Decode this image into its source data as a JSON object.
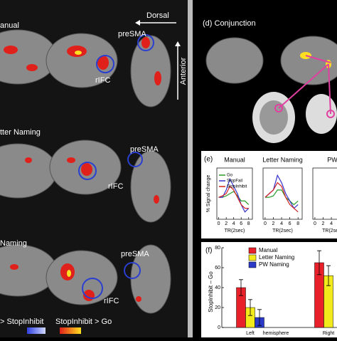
{
  "left": {
    "panels": [
      {
        "label": "anual",
        "pre_sma": "preSMA",
        "rifc": "rIFC"
      },
      {
        "label": "tter Naming",
        "pre_sma": "preSMA",
        "rifc": "rIFC"
      },
      {
        "label": "Naming",
        "pre_sma": "preSMA",
        "rifc": "rIFC"
      }
    ],
    "orientation": {
      "dorsal": "Dorsal",
      "anterior": "Anterior"
    },
    "legend": {
      "negative": "> StopInhibit",
      "positive": "StopInhibit > Go"
    }
  },
  "conjunction": {
    "title": "(d) Conjunction"
  },
  "timecourse": {
    "label": "(e)",
    "ylabel": "% Signal change",
    "xlabel": "TR(2sec)",
    "x": [
      0,
      1,
      2,
      3,
      4,
      5,
      6,
      7,
      8
    ],
    "xticks": [
      0,
      2,
      4,
      6,
      8
    ],
    "xlim": [
      -0.5,
      9
    ],
    "ylim": [
      -0.3,
      0.4
    ],
    "panels": [
      {
        "title": "Manual",
        "series": [
          {
            "name": "Go",
            "color": "#2a9a2a",
            "values": [
              0,
              0,
              0.02,
              0.05,
              0.08,
              0.02,
              -0.05,
              -0.05,
              -0.1
            ]
          },
          {
            "name": "StopFail",
            "color": "#3333cc",
            "values": [
              0,
              0,
              0.1,
              0.25,
              0.15,
              0.05,
              -0.1,
              -0.2,
              -0.15
            ]
          },
          {
            "name": "StopInhibit",
            "color": "#d42020",
            "values": [
              0,
              0.02,
              0.05,
              0.15,
              0.1,
              0,
              -0.1,
              -0.15,
              -0.15
            ]
          }
        ]
      },
      {
        "title": "Letter Naming",
        "series": [
          {
            "name": "Go",
            "color": "#2a9a2a",
            "values": [
              0,
              0,
              0.02,
              0.1,
              0.1,
              0,
              -0.05,
              -0.1,
              -0.05
            ]
          },
          {
            "name": "StopFail",
            "color": "#3333cc",
            "values": [
              0,
              0.05,
              0.1,
              0.3,
              0.2,
              0.05,
              -0.05,
              -0.15,
              -0.1
            ]
          },
          {
            "name": "StopInhibit",
            "color": "#d42020",
            "values": [
              0,
              0.05,
              0.1,
              0.2,
              0.15,
              0,
              -0.1,
              -0.15,
              -0.2
            ]
          }
        ]
      },
      {
        "title": "PW",
        "series": []
      }
    ]
  },
  "chart_data": {
    "type": "bar",
    "title": "(f)",
    "ylabel": "StopInhibit – Go",
    "xlabel": "hemisphere",
    "categories": [
      "Left",
      "Right"
    ],
    "series": [
      {
        "name": "Manual",
        "color": "#e8202a",
        "values": [
          40,
          65
        ],
        "errors": [
          8,
          12
        ]
      },
      {
        "name": "Letter Naming",
        "color": "#f2ea1a",
        "values": [
          20,
          52
        ],
        "errors": [
          8,
          10
        ]
      },
      {
        "name": "PW Naming",
        "color": "#2b3bc8",
        "values": [
          10,
          null
        ],
        "errors": [
          8,
          null
        ]
      }
    ],
    "ylim": [
      0,
      80
    ],
    "yticks": [
      0,
      20,
      40,
      60,
      80
    ]
  }
}
